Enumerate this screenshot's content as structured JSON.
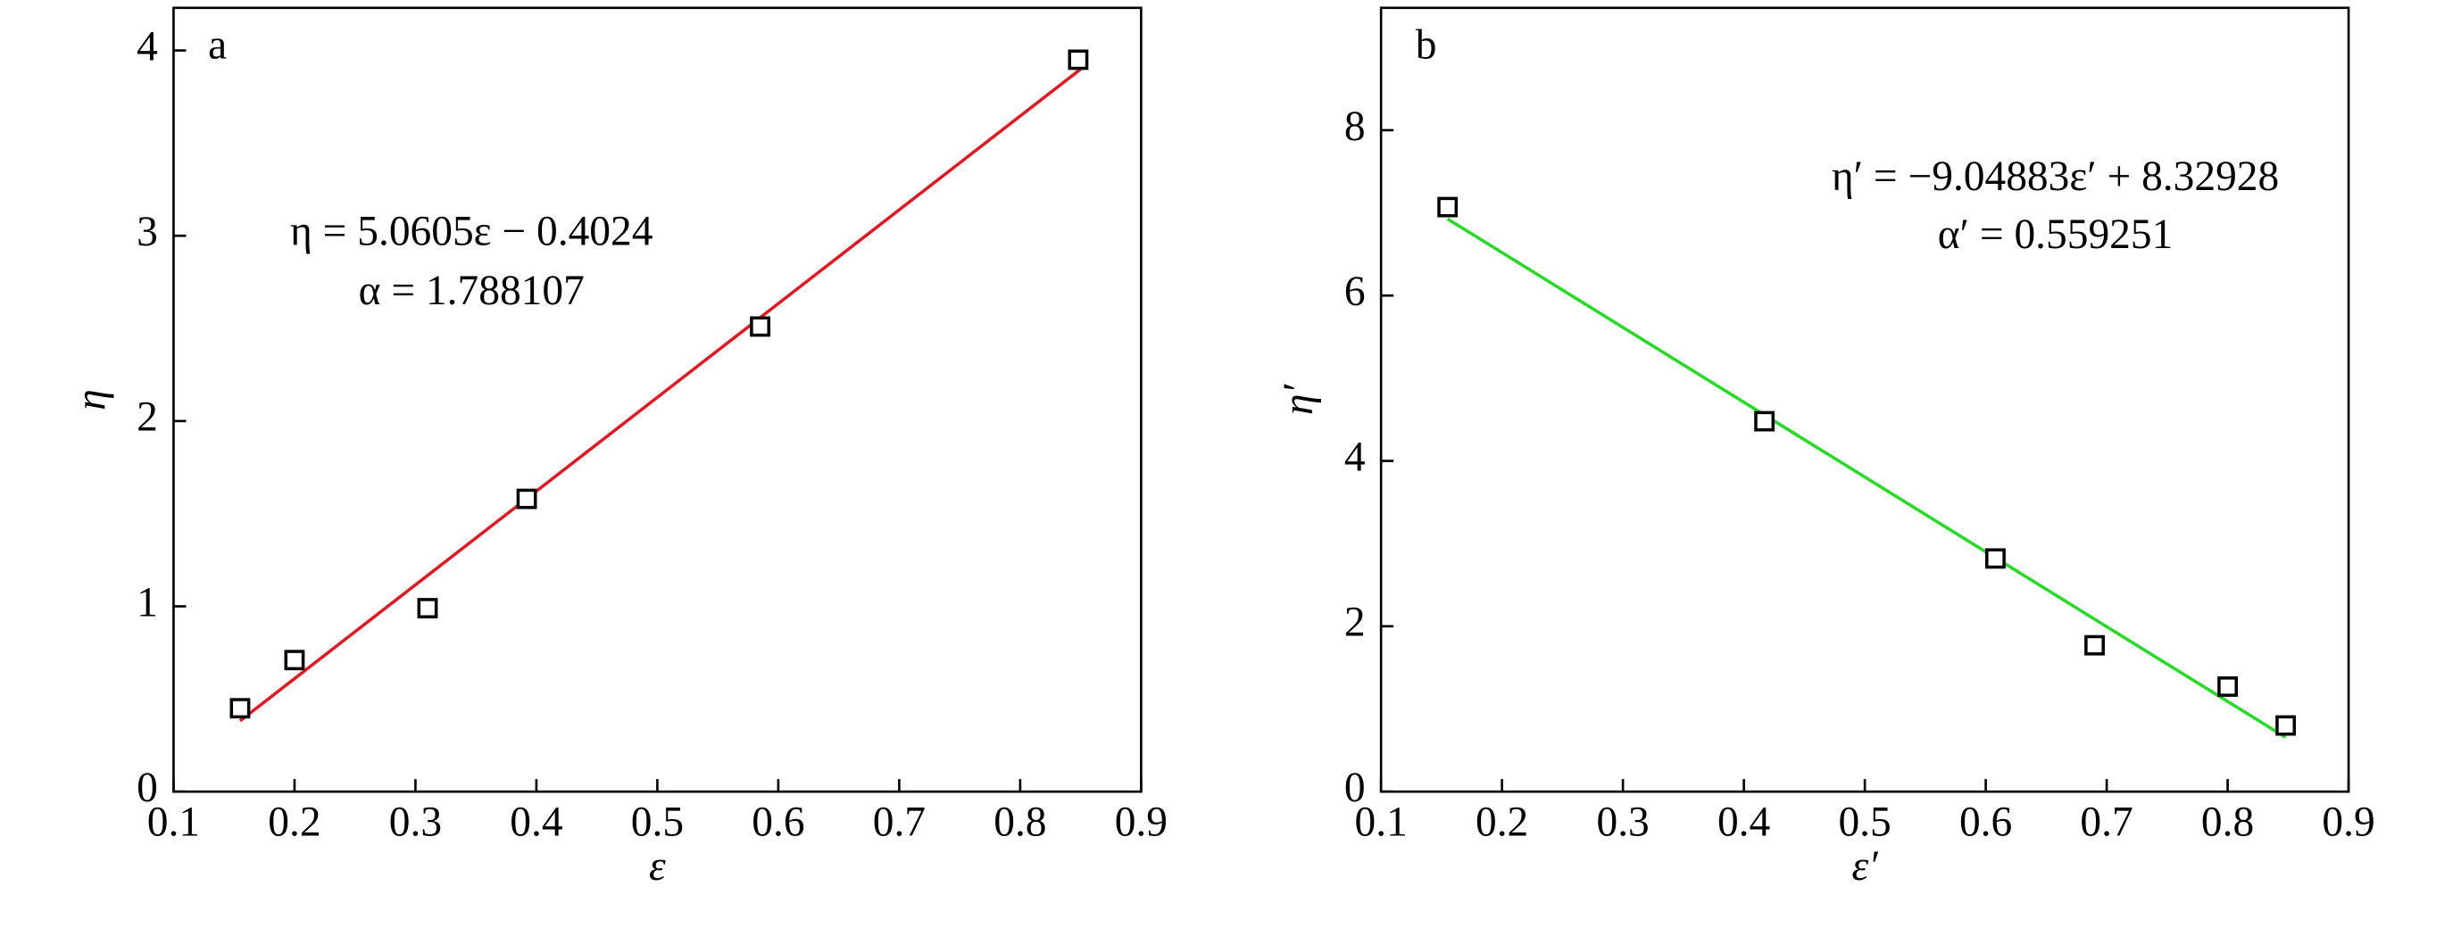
{
  "chart_data": [
    {
      "type": "scatter",
      "panel_label": "a",
      "xlabel": "ε",
      "ylabel": "η",
      "annotations": [
        "η = 5.0605ε − 0.4024",
        "α = 1.788107"
      ],
      "xlim": [
        0.1,
        0.9
      ],
      "xticks": [
        0.1,
        0.2,
        0.3,
        0.4,
        0.5,
        0.6,
        0.7,
        0.8,
        0.9
      ],
      "ylim": [
        0,
        4.23
      ],
      "yticks": [
        0,
        1,
        2,
        3,
        4
      ],
      "series": [
        {
          "type": "scatter",
          "marker": "square",
          "color": "#000000",
          "x": [
            0.155,
            0.2,
            0.31,
            0.392,
            0.585,
            0.848
          ],
          "values": [
            0.45,
            0.71,
            0.99,
            1.58,
            2.51,
            3.95
          ]
        },
        {
          "type": "line",
          "color": "#e8141e",
          "x": [
            0.155,
            0.85
          ],
          "values": [
            0.382,
            3.899
          ]
        }
      ]
    },
    {
      "type": "scatter",
      "panel_label": "b",
      "xlabel": "ε′",
      "ylabel": "η′",
      "annotations": [
        "η′ = −9.04883ε′ + 8.32928",
        "α′ = 0.559251"
      ],
      "xlim": [
        0.1,
        0.9
      ],
      "xticks": [
        0.1,
        0.2,
        0.3,
        0.4,
        0.5,
        0.6,
        0.7,
        0.8,
        0.9
      ],
      "ylim": [
        0,
        9.48
      ],
      "yticks": [
        0,
        2,
        4,
        6,
        8
      ],
      "series": [
        {
          "type": "scatter",
          "marker": "square",
          "color": "#000000",
          "x": [
            0.155,
            0.417,
            0.608,
            0.69,
            0.8,
            0.848
          ],
          "values": [
            7.07,
            4.48,
            2.82,
            1.77,
            1.27,
            0.8
          ]
        },
        {
          "type": "line",
          "color": "#22dd22",
          "x": [
            0.155,
            0.848
          ],
          "values": [
            6.927,
            0.656
          ]
        }
      ]
    }
  ]
}
